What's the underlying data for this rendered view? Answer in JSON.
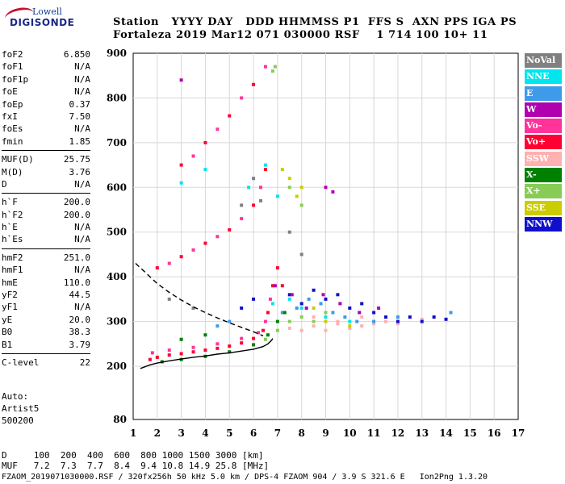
{
  "logo": {
    "top": "Lowell",
    "main": "DIGISONDE"
  },
  "header": {
    "line1": "Station   YYYY DAY   DDD HHMMSS P1  FFS S  AXN PPS IGA PS",
    "line2": "Fortaleza 2019 Mar12 071 030000 RSF    1 714 100 10+ 11"
  },
  "params": [
    [
      {
        "name": "foF2",
        "value": "6.850"
      },
      {
        "name": "foF1",
        "value": "N/A"
      },
      {
        "name": "foF1p",
        "value": "N/A"
      },
      {
        "name": "foE",
        "value": "N/A"
      },
      {
        "name": "foEp",
        "value": "0.37"
      },
      {
        "name": "fxI",
        "value": "7.50"
      },
      {
        "name": "foEs",
        "value": "N/A"
      },
      {
        "name": "fmin",
        "value": "1.85"
      }
    ],
    [
      {
        "name": "MUF(D)",
        "value": "25.75"
      },
      {
        "name": "M(D)",
        "value": "3.76"
      },
      {
        "name": "D",
        "value": "N/A"
      }
    ],
    [
      {
        "name": "h`F",
        "value": "200.0"
      },
      {
        "name": "h`F2",
        "value": "200.0"
      },
      {
        "name": "h`E",
        "value": "N/A"
      },
      {
        "name": "h`Es",
        "value": "N/A"
      }
    ],
    [
      {
        "name": "hmF2",
        "value": "251.0"
      },
      {
        "name": "hmF1",
        "value": "N/A"
      },
      {
        "name": "hmE",
        "value": "110.0"
      },
      {
        "name": "yF2",
        "value": "44.5"
      },
      {
        "name": "yF1",
        "value": "N/A"
      },
      {
        "name": "yE",
        "value": "20.0"
      },
      {
        "name": "B0",
        "value": "38.3"
      },
      {
        "name": "B1",
        "value": "3.79"
      }
    ],
    [
      {
        "name": "C-level",
        "value": "22"
      }
    ]
  ],
  "auto": {
    "line1": "Auto:",
    "line2": "Artist5",
    "line3": "500200"
  },
  "legend": [
    {
      "label": "NoVal",
      "color": "#808080"
    },
    {
      "label": "NNE",
      "color": "#00e5ee"
    },
    {
      "label": "E",
      "color": "#3d9be9"
    },
    {
      "label": "W",
      "color": "#b000b0"
    },
    {
      "label": "Vo-",
      "color": "#ff3399"
    },
    {
      "label": "Vo+",
      "color": "#ff0033"
    },
    {
      "label": "SSW",
      "color": "#ffb0b0"
    },
    {
      "label": "X-",
      "color": "#008000"
    },
    {
      "label": "X+",
      "color": "#88cc55"
    },
    {
      "label": "SSE",
      "color": "#cccc00"
    },
    {
      "label": "NNW",
      "color": "#1010cc"
    }
  ],
  "bottom": {
    "d_line": "D     100  200  400  600  800 1000 1500 3000 [km]",
    "muf_line": "MUF   7.2  7.3  7.7  8.4  9.4 10.8 14.9 25.8 [MHz]",
    "footer": "FZAOM_2019071030000.RSF / 320fx256h 50 kHz 5.0 km / DPS-4 FZAOM 904 / 3.9 S 321.6 E   Ion2Png 1.3.20"
  },
  "chart_data": {
    "type": "scatter",
    "title": "",
    "xlabel": "",
    "ylabel": "",
    "xlim": [
      1,
      17
    ],
    "ylim": [
      80,
      900
    ],
    "x_ticks": [
      1,
      2,
      3,
      4,
      5,
      6,
      7,
      8,
      9,
      10,
      11,
      12,
      13,
      14,
      15,
      16,
      17
    ],
    "y_ticks": [
      80,
      200,
      300,
      400,
      500,
      600,
      700,
      800,
      900
    ],
    "grid": true,
    "legend_placement": "right",
    "series": [
      {
        "name": "Vo+",
        "points": [
          [
            1.7,
            215
          ],
          [
            2.0,
            220
          ],
          [
            2.5,
            225
          ],
          [
            3.0,
            228
          ],
          [
            3.5,
            232
          ],
          [
            4.0,
            236
          ],
          [
            4.5,
            240
          ],
          [
            5.0,
            245
          ],
          [
            5.5,
            252
          ],
          [
            6.0,
            262
          ],
          [
            6.4,
            280
          ],
          [
            6.6,
            320
          ],
          [
            6.8,
            380
          ],
          [
            7.0,
            420
          ],
          [
            7.2,
            380
          ],
          [
            2.0,
            420
          ],
          [
            3.0,
            445
          ],
          [
            4.0,
            475
          ],
          [
            5.0,
            505
          ],
          [
            6.0,
            560
          ],
          [
            6.5,
            640
          ],
          [
            3.0,
            650
          ],
          [
            4.0,
            700
          ],
          [
            5.0,
            760
          ],
          [
            6.0,
            830
          ]
        ]
      },
      {
        "name": "Vo-",
        "points": [
          [
            1.8,
            230
          ],
          [
            2.5,
            236
          ],
          [
            3.5,
            242
          ],
          [
            4.5,
            250
          ],
          [
            5.5,
            262
          ],
          [
            6.2,
            275
          ],
          [
            6.5,
            300
          ],
          [
            6.7,
            350
          ],
          [
            2.5,
            430
          ],
          [
            3.5,
            460
          ],
          [
            4.5,
            490
          ],
          [
            5.5,
            530
          ],
          [
            6.3,
            600
          ],
          [
            3.5,
            670
          ],
          [
            4.5,
            730
          ],
          [
            5.5,
            800
          ],
          [
            6.5,
            870
          ]
        ]
      },
      {
        "name": "SSW",
        "points": [
          [
            7.5,
            285
          ],
          [
            8.0,
            280
          ],
          [
            8.5,
            290
          ],
          [
            9.0,
            280
          ],
          [
            9.5,
            295
          ],
          [
            10.0,
            285
          ],
          [
            10.5,
            290
          ],
          [
            11.0,
            295
          ],
          [
            11.5,
            300
          ],
          [
            12.0,
            295
          ],
          [
            13.0,
            305
          ],
          [
            8.5,
            310
          ],
          [
            9.5,
            300
          ],
          [
            10.5,
            310
          ]
        ]
      },
      {
        "name": "NNW",
        "points": [
          [
            7.5,
            360
          ],
          [
            8.0,
            340
          ],
          [
            8.5,
            370
          ],
          [
            9.0,
            350
          ],
          [
            9.5,
            360
          ],
          [
            10.0,
            330
          ],
          [
            10.5,
            340
          ],
          [
            11.0,
            320
          ],
          [
            11.5,
            310
          ],
          [
            12.0,
            300
          ],
          [
            12.5,
            310
          ],
          [
            13.0,
            300
          ],
          [
            13.5,
            310
          ],
          [
            14.0,
            305
          ],
          [
            6.0,
            350
          ],
          [
            5.5,
            330
          ]
        ]
      },
      {
        "name": "E",
        "points": [
          [
            7.2,
            320
          ],
          [
            7.8,
            330
          ],
          [
            8.3,
            350
          ],
          [
            8.8,
            340
          ],
          [
            9.3,
            320
          ],
          [
            9.8,
            310
          ],
          [
            10.3,
            300
          ],
          [
            11.0,
            300
          ],
          [
            12.0,
            310
          ],
          [
            14.2,
            320
          ],
          [
            5.0,
            300
          ],
          [
            4.5,
            290
          ]
        ]
      },
      {
        "name": "NNE",
        "points": [
          [
            6.8,
            340
          ],
          [
            7.5,
            350
          ],
          [
            8.0,
            330
          ],
          [
            9.0,
            310
          ],
          [
            10.0,
            300
          ],
          [
            5.8,
            600
          ],
          [
            6.5,
            650
          ],
          [
            7.0,
            580
          ],
          [
            4.0,
            640
          ],
          [
            3.0,
            610
          ]
        ]
      },
      {
        "name": "W",
        "points": [
          [
            6.9,
            380
          ],
          [
            7.6,
            360
          ],
          [
            8.2,
            330
          ],
          [
            8.9,
            360
          ],
          [
            9.6,
            340
          ],
          [
            10.4,
            320
          ],
          [
            11.2,
            330
          ],
          [
            9.0,
            600
          ],
          [
            9.3,
            590
          ],
          [
            3.0,
            840
          ]
        ]
      },
      {
        "name": "X-",
        "points": [
          [
            2.2,
            210
          ],
          [
            3.0,
            215
          ],
          [
            4.0,
            222
          ],
          [
            5.0,
            232
          ],
          [
            6.0,
            248
          ],
          [
            6.6,
            270
          ],
          [
            7.0,
            300
          ],
          [
            7.3,
            320
          ],
          [
            3.0,
            260
          ],
          [
            4.0,
            270
          ]
        ]
      },
      {
        "name": "X+",
        "points": [
          [
            6.5,
            260
          ],
          [
            7.0,
            280
          ],
          [
            7.5,
            300
          ],
          [
            8.0,
            310
          ],
          [
            8.5,
            300
          ],
          [
            9.0,
            320
          ],
          [
            6.8,
            860
          ],
          [
            6.9,
            870
          ],
          [
            7.5,
            600
          ],
          [
            8.0,
            560
          ]
        ]
      },
      {
        "name": "SSE",
        "points": [
          [
            7.5,
            620
          ],
          [
            7.8,
            580
          ],
          [
            8.0,
            600
          ],
          [
            7.2,
            640
          ],
          [
            8.5,
            330
          ],
          [
            9.0,
            300
          ],
          [
            10.0,
            290
          ]
        ]
      },
      {
        "name": "NoVal",
        "points": [
          [
            6.0,
            620
          ],
          [
            6.3,
            570
          ],
          [
            5.5,
            560
          ],
          [
            7.5,
            500
          ],
          [
            8.0,
            450
          ],
          [
            2.5,
            350
          ],
          [
            3.5,
            330
          ]
        ]
      }
    ],
    "curves": [
      {
        "name": "profile",
        "points": [
          [
            1.3,
            195
          ],
          [
            1.7,
            203
          ],
          [
            2.0,
            207
          ],
          [
            2.5,
            212
          ],
          [
            3.0,
            216
          ],
          [
            3.5,
            220
          ],
          [
            4.0,
            223
          ],
          [
            4.5,
            227
          ],
          [
            5.0,
            230
          ],
          [
            5.5,
            234
          ],
          [
            6.0,
            238
          ],
          [
            6.4,
            244
          ],
          [
            6.6,
            250
          ],
          [
            6.75,
            258
          ],
          [
            6.8,
            262
          ]
        ]
      },
      {
        "name": "model",
        "dashed": true,
        "points": [
          [
            1.1,
            430
          ],
          [
            1.5,
            410
          ],
          [
            2.0,
            385
          ],
          [
            2.5,
            365
          ],
          [
            3.0,
            348
          ],
          [
            3.5,
            333
          ],
          [
            4.0,
            320
          ],
          [
            4.5,
            308
          ],
          [
            5.0,
            297
          ],
          [
            5.5,
            287
          ],
          [
            6.0,
            277
          ],
          [
            6.4,
            268
          ]
        ]
      }
    ]
  }
}
